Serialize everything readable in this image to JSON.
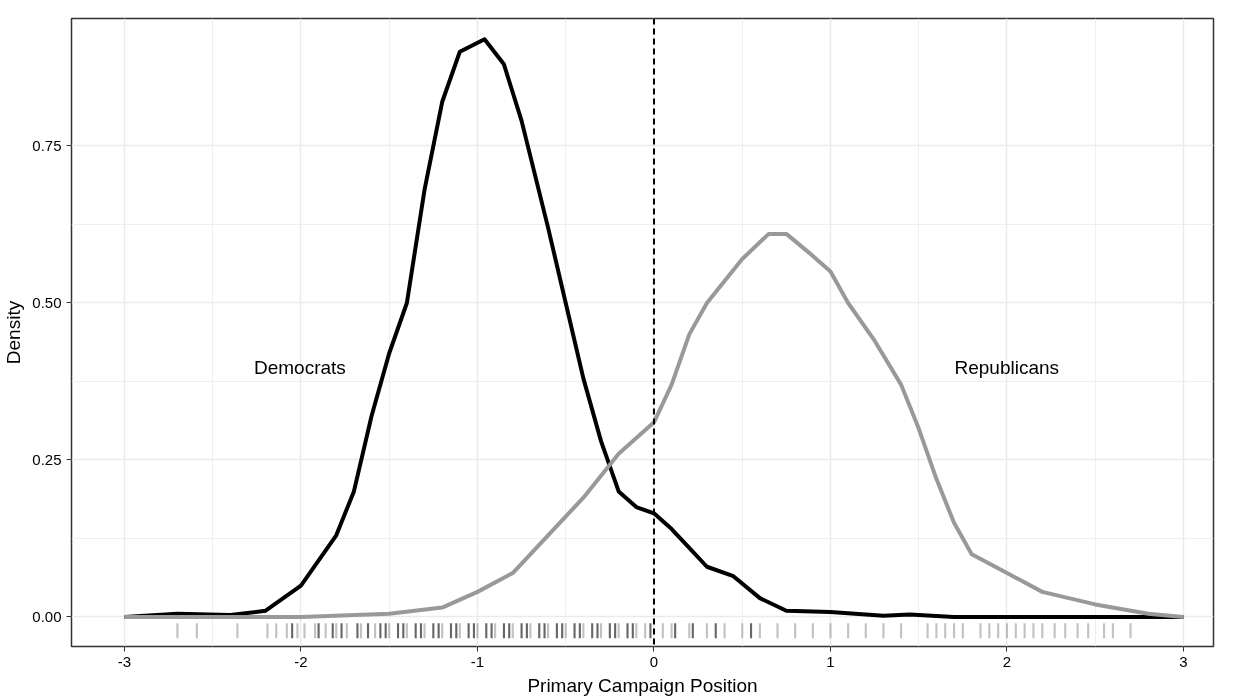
{
  "chart_data": {
    "type": "line",
    "xlabel": "Primary Campaign Position",
    "ylabel": "Density",
    "xlim": [
      -3.3,
      3.17
    ],
    "ylim": [
      -0.047,
      0.953
    ],
    "xticks": [
      -3,
      -2,
      -1,
      0,
      1,
      2,
      3
    ],
    "yticks": [
      {
        "value": 0,
        "label": "0.00"
      },
      {
        "value": 0.25,
        "label": "0.25"
      },
      {
        "value": 0.5,
        "label": "0.50"
      },
      {
        "value": 0.75,
        "label": "0.75"
      }
    ],
    "grid": true,
    "marker": "none",
    "line_style": "solid",
    "series": [
      {
        "color": "#000000",
        "x": [
          -3,
          -2.7,
          -2.4,
          -2.2,
          -2.0,
          -1.8,
          -1.7,
          -1.6,
          -1.5,
          -1.4,
          -1.3,
          -1.2,
          -1.1,
          -0.96,
          -0.85,
          -0.75,
          -0.6,
          -0.5,
          -0.4,
          -0.3,
          -0.2,
          -0.1,
          0,
          0.1,
          0.2,
          0.3,
          0.45,
          0.6,
          0.75,
          1.0,
          1.3,
          1.45,
          1.7,
          3
        ],
        "values": [
          0,
          0.005,
          0.003,
          0.01,
          0.05,
          0.13,
          0.2,
          0.32,
          0.42,
          0.5,
          0.68,
          0.82,
          0.9,
          0.92,
          0.88,
          0.79,
          0.62,
          0.5,
          0.38,
          0.28,
          0.2,
          0.175,
          0.165,
          0.14,
          0.11,
          0.08,
          0.065,
          0.03,
          0.01,
          0.008,
          0.002,
          0.004,
          0,
          0
        ]
      },
      {
        "color": "#999999",
        "x": [
          -3,
          -2,
          -1.5,
          -1.2,
          -1.0,
          -0.8,
          -0.6,
          -0.4,
          -0.2,
          -0.1,
          0,
          0.1,
          0.2,
          0.3,
          0.5,
          0.65,
          0.75,
          0.9,
          1.0,
          1.1,
          1.25,
          1.4,
          1.5,
          1.6,
          1.7,
          1.8,
          2.0,
          2.2,
          2.5,
          2.8,
          3
        ],
        "values": [
          0,
          0,
          0.005,
          0.015,
          0.04,
          0.07,
          0.13,
          0.19,
          0.26,
          0.285,
          0.31,
          0.37,
          0.45,
          0.5,
          0.57,
          0.61,
          0.61,
          0.575,
          0.55,
          0.5,
          0.44,
          0.37,
          0.3,
          0.22,
          0.15,
          0.1,
          0.07,
          0.04,
          0.02,
          0.005,
          0
        ]
      },
      {
        "type": "bar",
        "color": "#999999",
        "x": [
          -2.7,
          -2.59,
          -2.36,
          -2.19,
          -2.14,
          -2.08,
          -2.02,
          -1.98,
          -1.92,
          -1.86,
          -1.8,
          -1.74,
          -1.66,
          -1.58,
          -1.5,
          -1.4,
          -1.3,
          -1.2,
          -1.1,
          -1.0,
          -0.9,
          -0.8,
          -0.7,
          -0.6,
          -0.5,
          -0.4,
          -0.3,
          -0.2,
          -0.1,
          -0.05,
          0.05,
          0.1,
          0.2,
          0.3,
          0.4,
          0.5,
          0.6,
          0.7,
          0.8,
          0.9,
          1.0,
          1.1,
          1.2,
          1.3,
          1.4,
          1.55,
          1.6,
          1.65,
          1.7,
          1.75,
          1.85,
          1.9,
          1.95,
          2.0,
          2.05,
          2.1,
          2.15,
          2.2,
          2.27,
          2.33,
          2.4,
          2.46,
          2.55,
          2.6,
          2.7
        ],
        "base": [
          -0.034,
          -0.034,
          -0.034,
          -0.034,
          -0.034,
          -0.034,
          -0.034,
          -0.034,
          -0.034,
          -0.034,
          -0.034,
          -0.034,
          -0.034,
          -0.034,
          -0.034,
          -0.034,
          -0.034,
          -0.034,
          -0.034,
          -0.034,
          -0.034,
          -0.034,
          -0.034,
          -0.034,
          -0.034,
          -0.034,
          -0.034,
          -0.034,
          -0.034,
          -0.034,
          -0.034,
          -0.034,
          -0.034,
          -0.034,
          -0.034,
          -0.034,
          -0.034,
          -0.034,
          -0.034,
          -0.034,
          -0.034,
          -0.034,
          -0.034,
          -0.034,
          -0.034,
          -0.034,
          -0.034,
          -0.034,
          -0.034,
          -0.034,
          -0.034,
          -0.034,
          -0.034,
          -0.034,
          -0.034,
          -0.034,
          -0.034,
          -0.034,
          -0.034,
          -0.034,
          -0.034,
          -0.034,
          -0.034,
          -0.034,
          -0.034
        ],
        "values": [
          0.024,
          0.024,
          0.024,
          0.024,
          0.024,
          0.024,
          0.024,
          0.024,
          0.024,
          0.024,
          0.024,
          0.024,
          0.024,
          0.024,
          0.024,
          0.024,
          0.024,
          0.024,
          0.024,
          0.024,
          0.024,
          0.024,
          0.024,
          0.024,
          0.024,
          0.024,
          0.024,
          0.024,
          0.024,
          0.024,
          0.024,
          0.024,
          0.024,
          0.024,
          0.024,
          0.024,
          0.024,
          0.024,
          0.024,
          0.024,
          0.024,
          0.024,
          0.024,
          0.024,
          0.024,
          0.024,
          0.024,
          0.024,
          0.024,
          0.024,
          0.024,
          0.024,
          0.024,
          0.024,
          0.024,
          0.024,
          0.024,
          0.024,
          0.024,
          0.024,
          0.024,
          0.024,
          0.024,
          0.024,
          0.024
        ]
      },
      {
        "type": "bar",
        "color": "#000000",
        "x": [
          -2.05,
          -1.9,
          -1.82,
          -1.77,
          -1.68,
          -1.62,
          -1.55,
          -1.52,
          -1.45,
          -1.42,
          -1.35,
          -1.32,
          -1.25,
          -1.22,
          -1.15,
          -1.12,
          -1.05,
          -1.02,
          -0.95,
          -0.92,
          -0.85,
          -0.82,
          -0.75,
          -0.72,
          -0.65,
          -0.62,
          -0.55,
          -0.52,
          -0.45,
          -0.42,
          -0.35,
          -0.32,
          -0.25,
          -0.22,
          -0.15,
          -0.12,
          -0.02,
          0.12,
          0.22,
          0.35,
          0.55
        ],
        "base": [
          -0.034,
          -0.034,
          -0.034,
          -0.034,
          -0.034,
          -0.034,
          -0.034,
          -0.034,
          -0.034,
          -0.034,
          -0.034,
          -0.034,
          -0.034,
          -0.034,
          -0.034,
          -0.034,
          -0.034,
          -0.034,
          -0.034,
          -0.034,
          -0.034,
          -0.034,
          -0.034,
          -0.034,
          -0.034,
          -0.034,
          -0.034,
          -0.034,
          -0.034,
          -0.034,
          -0.034,
          -0.034,
          -0.034,
          -0.034,
          -0.034,
          -0.034,
          -0.034,
          -0.034,
          -0.034,
          -0.034,
          -0.034
        ],
        "values": [
          0.024,
          0.024,
          0.024,
          0.024,
          0.024,
          0.024,
          0.024,
          0.024,
          0.024,
          0.024,
          0.024,
          0.024,
          0.024,
          0.024,
          0.024,
          0.024,
          0.024,
          0.024,
          0.024,
          0.024,
          0.024,
          0.024,
          0.024,
          0.024,
          0.024,
          0.024,
          0.024,
          0.024,
          0.024,
          0.024,
          0.024,
          0.024,
          0.024,
          0.024,
          0.024,
          0.024,
          0.024,
          0.024,
          0.024,
          0.024,
          0.024
        ]
      }
    ],
    "ref_lines": [
      {
        "axis": "x",
        "value": 0,
        "color": "#000000",
        "line_style": "dashed"
      }
    ],
    "annotations": [
      "Democrats",
      "Republicans"
    ]
  }
}
